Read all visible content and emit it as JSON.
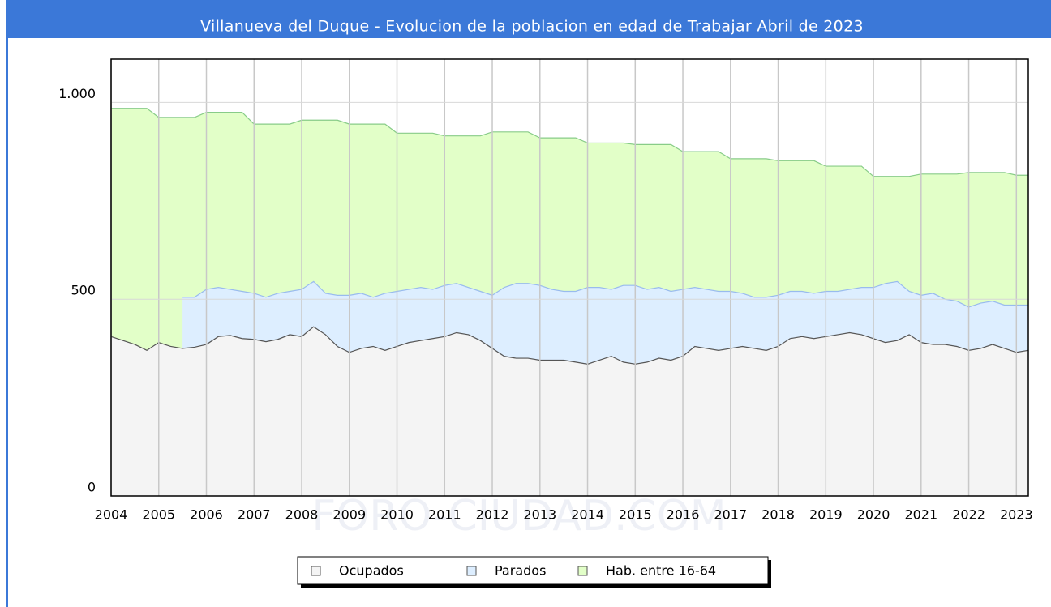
{
  "chart_data": {
    "type": "area",
    "title": "Villanueva del Duque - Evolucion de la poblacion en edad de Trabajar Abril de 2023",
    "watermark": "FORO-CIUDAD.COM",
    "x": [
      2004,
      2004.25,
      2004.5,
      2004.75,
      2005,
      2005.25,
      2005.5,
      2005.75,
      2006,
      2006.25,
      2006.5,
      2006.75,
      2007,
      2007.25,
      2007.5,
      2007.75,
      2008,
      2008.25,
      2008.5,
      2008.75,
      2009,
      2009.25,
      2009.5,
      2009.75,
      2010,
      2010.25,
      2010.5,
      2010.75,
      2011,
      2011.25,
      2011.5,
      2011.75,
      2012,
      2012.25,
      2012.5,
      2012.75,
      2013,
      2013.25,
      2013.5,
      2013.75,
      2014,
      2014.25,
      2014.5,
      2014.75,
      2015,
      2015.25,
      2015.5,
      2015.75,
      2016,
      2016.25,
      2016.5,
      2016.75,
      2017,
      2017.25,
      2017.5,
      2017.75,
      2018,
      2018.25,
      2018.5,
      2018.75,
      2019,
      2019.25,
      2019.5,
      2019.75,
      2020,
      2020.25,
      2020.5,
      2020.75,
      2021,
      2021.25,
      2021.5,
      2021.75,
      2022,
      2022.25,
      2022.5,
      2022.75,
      2023,
      2023.25
    ],
    "series": [
      {
        "name": "Ocupados",
        "color": "#f4f4f4",
        "line_color": "#555555",
        "values": [
          405,
          395,
          385,
          370,
          390,
          380,
          375,
          378,
          385,
          405,
          408,
          400,
          398,
          392,
          398,
          410,
          405,
          430,
          410,
          380,
          365,
          375,
          380,
          370,
          380,
          390,
          395,
          400,
          405,
          415,
          410,
          395,
          375,
          355,
          350,
          350,
          345,
          345,
          345,
          340,
          335,
          345,
          355,
          340,
          335,
          340,
          350,
          345,
          355,
          380,
          375,
          370,
          375,
          380,
          375,
          370,
          380,
          400,
          405,
          400,
          405,
          410,
          415,
          410,
          400,
          390,
          395,
          410,
          390,
          385,
          385,
          380,
          370,
          375,
          385,
          375,
          365,
          370
        ]
      },
      {
        "name": "Parados",
        "color": "#ddeeff",
        "line_color": "#99bbee",
        "values": [
          null,
          null,
          null,
          null,
          null,
          null,
          130,
          127,
          140,
          125,
          117,
          120,
          117,
          113,
          117,
          110,
          120,
          115,
          105,
          130,
          145,
          140,
          125,
          145,
          140,
          135,
          135,
          125,
          130,
          125,
          120,
          125,
          135,
          175,
          190,
          190,
          190,
          180,
          175,
          180,
          195,
          185,
          170,
          195,
          200,
          185,
          180,
          175,
          170,
          150,
          150,
          150,
          145,
          135,
          130,
          135,
          130,
          120,
          115,
          115,
          115,
          110,
          110,
          120,
          130,
          150,
          150,
          110,
          120,
          130,
          115,
          115,
          110,
          115,
          110,
          110,
          120,
          115
        ]
      },
      {
        "name": "Hab. entre 16-64",
        "color": "#e2ffc8",
        "line_color": "#88cc88",
        "values": [
          985,
          985,
          985,
          985,
          962,
          962,
          962,
          962,
          975,
          975,
          975,
          975,
          945,
          945,
          945,
          945,
          955,
          955,
          955,
          955,
          945,
          945,
          945,
          945,
          922,
          922,
          922,
          922,
          915,
          915,
          915,
          915,
          925,
          925,
          925,
          925,
          910,
          910,
          910,
          910,
          897,
          897,
          897,
          897,
          893,
          893,
          893,
          893,
          875,
          875,
          875,
          875,
          857,
          857,
          857,
          857,
          852,
          852,
          852,
          852,
          838,
          838,
          838,
          838,
          812,
          812,
          812,
          812,
          818,
          818,
          818,
          818,
          822,
          822,
          822,
          822,
          815,
          815
        ]
      }
    ],
    "xlim": [
      2004,
      2023.25
    ],
    "xticks": [
      2004,
      2005,
      2006,
      2007,
      2008,
      2009,
      2010,
      2011,
      2012,
      2013,
      2014,
      2015,
      2016,
      2017,
      2018,
      2019,
      2020,
      2021,
      2022,
      2023
    ],
    "ylim": [
      0,
      1110
    ],
    "yticks": [
      0,
      500,
      {
        "value": 1000,
        "label": "1.000"
      }
    ],
    "grid": true
  }
}
